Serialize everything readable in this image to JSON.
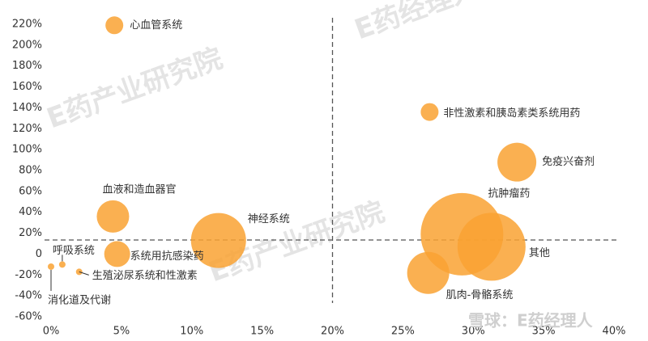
{
  "chart_data": {
    "type": "scatter",
    "points": [
      "心血管系统",
      "非性激素和胰岛素类系统用药",
      "免疫兴奋剂",
      "抗肿瘤药",
      "其他",
      "肌肉-骨骼系统",
      "血液和造血器官",
      "神经系统",
      "系统用抗感染药",
      "呼吸系统",
      "生殖泌尿系统和性激素",
      "消化道及代谢"
    ],
    "x": [
      4.5,
      26.9,
      33.1,
      29.2,
      31.3,
      26.8,
      4.4,
      11.9,
      4.7,
      0.8,
      2.0,
      0
    ],
    "y": [
      219,
      136,
      88,
      19,
      7,
      -18,
      36,
      13,
      0,
      -10,
      -17,
      -12
    ],
    "size": [
      121,
      121,
      576,
      2601,
      1764,
      676,
      400,
      1156,
      256,
      16,
      16,
      16
    ],
    "color": "#f9a232",
    "xlim": [
      0,
      40
    ],
    "xticks": [
      {
        "value": 0,
        "label": "0%"
      },
      {
        "value": 5,
        "label": "5%"
      },
      {
        "value": 10,
        "label": "10%"
      },
      {
        "value": 15,
        "label": "15%"
      },
      {
        "value": 20,
        "label": "20%"
      },
      {
        "value": 25,
        "label": "25%"
      },
      {
        "value": 30,
        "label": "30%"
      },
      {
        "value": 35,
        "label": "35%"
      },
      {
        "value": 40,
        "label": "40%"
      }
    ],
    "ylim": [
      -60,
      220
    ],
    "yticks": [
      {
        "value": -60,
        "label": "-60%"
      },
      {
        "value": -40,
        "label": "-40%"
      },
      {
        "value": -20,
        "label": "-20%"
      },
      0,
      {
        "value": 20,
        "label": "20%"
      },
      {
        "value": 40,
        "label": "40%"
      },
      {
        "value": 60,
        "label": "60%"
      },
      {
        "value": 80,
        "label": "80%"
      },
      {
        "value": 100,
        "label": "100%"
      },
      {
        "value": 120,
        "label": "120%"
      },
      {
        "value": 140,
        "label": "140%"
      },
      {
        "value": 160,
        "label": "160%"
      },
      {
        "value": 180,
        "label": "180%"
      },
      {
        "value": 200,
        "label": "200%"
      },
      {
        "value": 220,
        "label": "220%"
      }
    ],
    "reference_lines": {
      "x": 20,
      "y": 13.5
    },
    "watermarks": [
      "E药经理人",
      "E药产业研究院",
      "E药产业研究院",
      "雪球：E药经理人"
    ]
  }
}
